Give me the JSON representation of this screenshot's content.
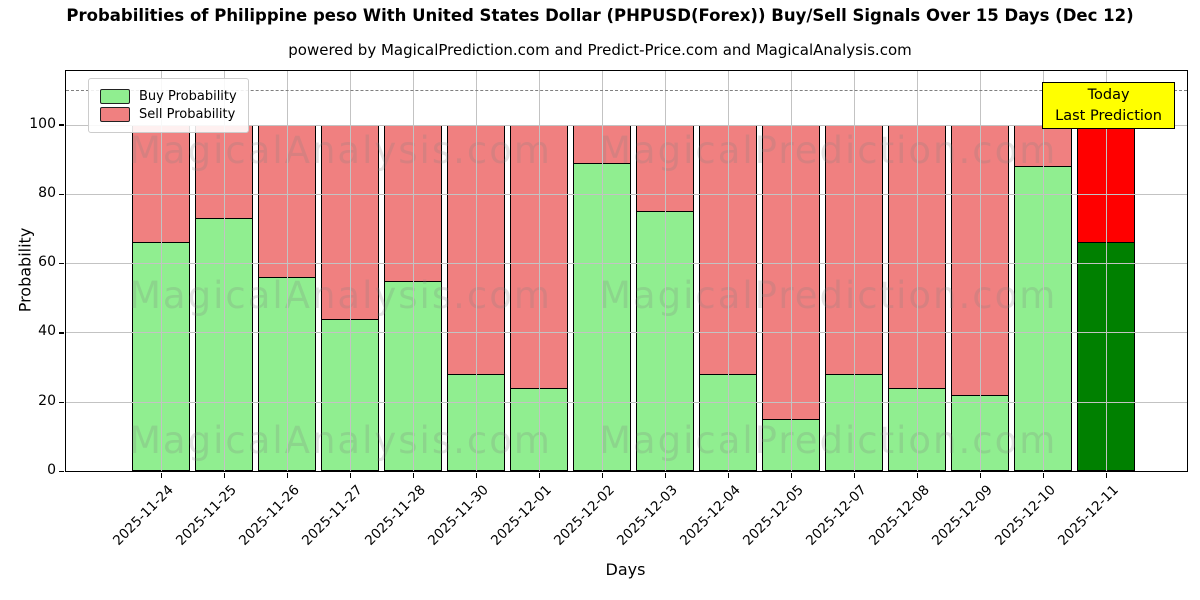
{
  "title": "Probabilities of Philippine peso With United States Dollar (PHPUSD(Forex)) Buy/Sell Signals Over 15 Days (Dec 12)",
  "subtitle": "powered by MagicalPrediction.com and Predict-Price.com and MagicalAnalysis.com",
  "axes": {
    "xlabel": "Days",
    "ylabel": "Probability"
  },
  "legend": {
    "items": [
      {
        "label": "Buy Probability",
        "color": "#90ee90"
      },
      {
        "label": "Sell Probability",
        "color": "#f08080"
      }
    ]
  },
  "annotation": {
    "line1": "Today",
    "line2": "Last Prediction",
    "bg_color": "#ffff00"
  },
  "watermark": {
    "left_text": "MagicalAnalysis.com",
    "right_text": "MagicalPrediction.com"
  },
  "chart_data": {
    "type": "bar",
    "stacked": true,
    "title": "Probabilities of Philippine peso With United States Dollar (PHPUSD(Forex)) Buy/Sell Signals Over 15 Days (Dec 12)",
    "xlabel": "Days",
    "ylabel": "Probability",
    "categories": [
      "2025-11-24",
      "2025-11-25",
      "2025-11-26",
      "2025-11-27",
      "2025-11-28",
      "2025-11-30",
      "2025-12-01",
      "2025-12-02",
      "2025-12-03",
      "2025-12-04",
      "2025-12-05",
      "2025-12-07",
      "2025-12-08",
      "2025-12-09",
      "2025-12-10",
      "2025-12-11"
    ],
    "series": [
      {
        "name": "Buy Probability",
        "color": "#90ee90",
        "values": [
          66,
          73,
          56,
          44,
          55,
          28,
          24,
          89,
          75,
          28,
          15,
          28,
          24,
          22,
          88,
          66
        ]
      },
      {
        "name": "Sell Probability",
        "color": "#f08080",
        "values": [
          34,
          27,
          44,
          56,
          45,
          72,
          76,
          11,
          25,
          72,
          85,
          72,
          76,
          78,
          12,
          34
        ]
      }
    ],
    "today_index": 15,
    "today_colors": {
      "buy": "#008000",
      "sell": "#ff0000"
    },
    "ylim": [
      0,
      115.5
    ],
    "yticks": [
      0,
      20,
      40,
      60,
      80,
      100
    ],
    "dashed_line_y": 110,
    "grid": true,
    "legend_position": "upper left",
    "bar_edge_color": "#000000"
  }
}
